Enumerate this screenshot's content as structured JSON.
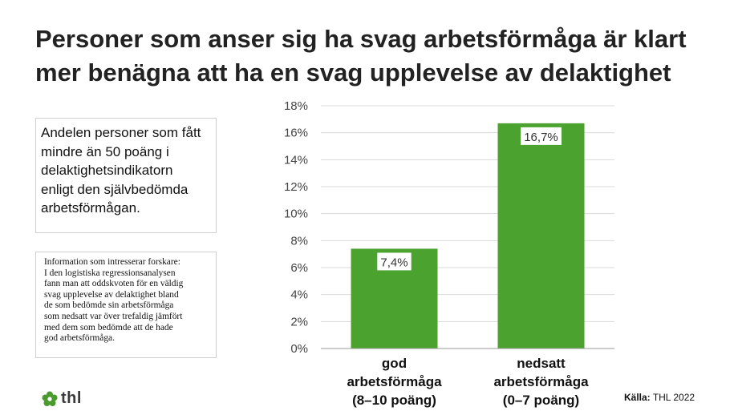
{
  "title_lines": [
    "Personer som anser sig ha svag arbetsförmåga är klart",
    "mer benägna att ha en svag upplevelse av delaktighet"
  ],
  "description_lines": [
    "Andelen personer som fått",
    "mindre än 50 poäng i",
    "delaktighetsindikatorn",
    "enligt den självbedömda",
    "arbetsförmågan."
  ],
  "researcher_note_lines": [
    "Information som intresserar forskare:",
    "I den logistiska regressionsanalysen",
    "fann man att oddskvoten för en väldig",
    "svag upplevelse av delaktighet bland",
    "de som bedömde sin arbetsförmåga",
    "som nedsatt var över trefaldig jämfört",
    "med dem som bedömde att de hade",
    "god arbetsförmåga."
  ],
  "logo": {
    "text": "thl",
    "icon": "thl-flower-logo-icon",
    "color": "#4a9a2e"
  },
  "source": {
    "label": "Källa:",
    "value": "THL 2022"
  },
  "chart_data": {
    "type": "bar",
    "categories": [
      [
        "god",
        "arbetsförmåga",
        "(8–10 poäng)"
      ],
      [
        "nedsatt",
        "arbetsförmåga",
        "(0–7 poäng)"
      ]
    ],
    "values": [
      7.4,
      16.7
    ],
    "data_labels": [
      "7,4%",
      "16,7%"
    ],
    "yticks": [
      "0%",
      "2%",
      "4%",
      "6%",
      "8%",
      "10%",
      "12%",
      "14%",
      "16%",
      "18%"
    ],
    "ylim": [
      0,
      18
    ],
    "bar_color": "#4ca22f",
    "grid": true,
    "legend": "none"
  }
}
